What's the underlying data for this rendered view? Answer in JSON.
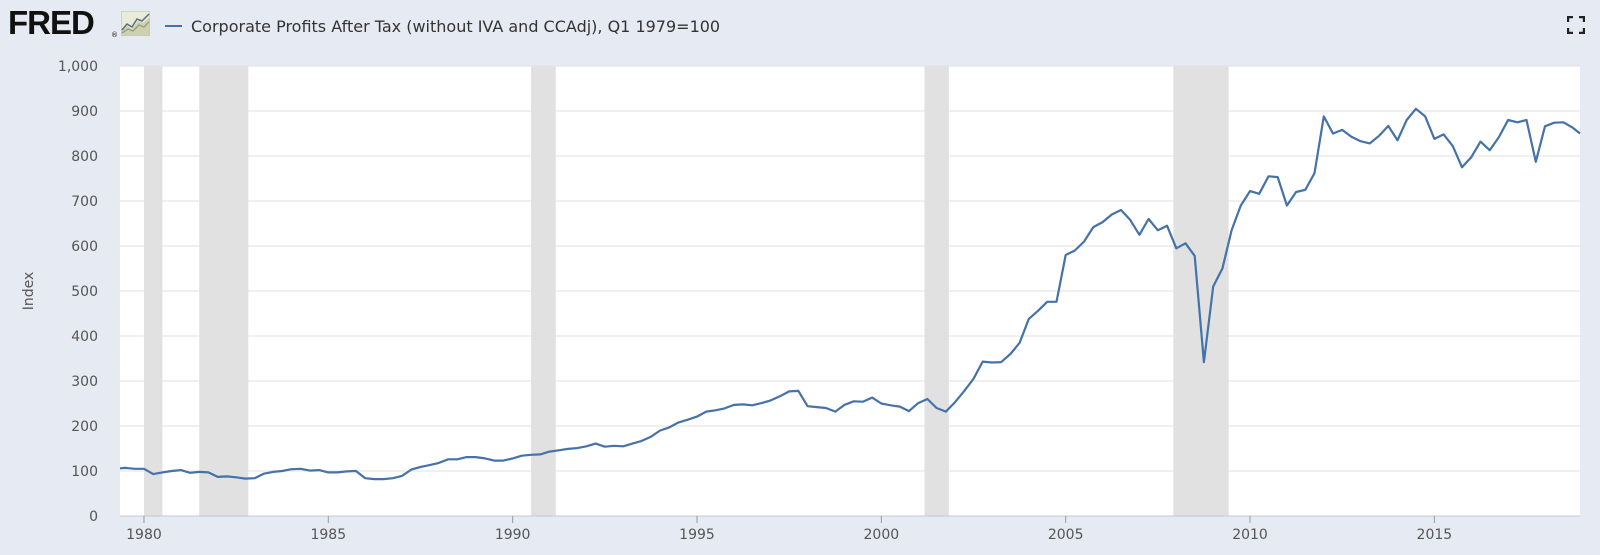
{
  "header": {
    "logo_text": "FRED",
    "logo_reg": "®",
    "title": "Corporate Profits After Tax (without IVA and CCAdj), Q1 1979=100"
  },
  "icons": {
    "logo_graph": "line-graph-icon",
    "fullscreen": "fullscreen-icon"
  },
  "colors": {
    "background": "#e6eaf2",
    "plot_background": "#ffffff",
    "series": "#4572a7",
    "recession": "#e1e1e1",
    "grid": "#e1e1e1"
  },
  "chart_data": {
    "type": "line",
    "title": "Corporate Profits After Tax (without IVA and CCAdj), Q1 1979=100",
    "xlabel": "",
    "ylabel": "Index",
    "xlim": [
      1979.35,
      2018.95
    ],
    "ylim": [
      0,
      1000
    ],
    "y_ticks": [
      0,
      100,
      200,
      300,
      400,
      500,
      600,
      700,
      800,
      900,
      1000
    ],
    "y_tick_labels": [
      "0",
      "100",
      "200",
      "300",
      "400",
      "500",
      "600",
      "700",
      "800",
      "900",
      "1,000"
    ],
    "x_ticks": [
      1980,
      1985,
      1990,
      1995,
      2000,
      2005,
      2010,
      2015
    ],
    "x_tick_labels": [
      "1980",
      "1985",
      "1990",
      "1995",
      "2000",
      "2005",
      "2010",
      "2015"
    ],
    "grid": true,
    "legend": "top-left",
    "recessions": [
      [
        1980.0,
        1980.5
      ],
      [
        1981.5,
        1982.83
      ],
      [
        1990.5,
        1991.17
      ],
      [
        2001.17,
        2001.83
      ],
      [
        2007.92,
        2009.42
      ]
    ],
    "series": [
      {
        "name": "Corporate Profits After Tax (without IVA and CCAdj), Q1 1979=100",
        "x": [
          1979.35,
          1979.5,
          1979.75,
          1980.0,
          1980.25,
          1980.5,
          1980.75,
          1981.0,
          1981.25,
          1981.5,
          1981.75,
          1982.0,
          1982.25,
          1982.5,
          1982.75,
          1983.0,
          1983.25,
          1983.5,
          1983.75,
          1984.0,
          1984.25,
          1984.5,
          1984.75,
          1985.0,
          1985.25,
          1985.5,
          1985.75,
          1986.0,
          1986.25,
          1986.5,
          1986.75,
          1987.0,
          1987.25,
          1987.5,
          1987.75,
          1988.0,
          1988.25,
          1988.5,
          1988.75,
          1989.0,
          1989.25,
          1989.5,
          1989.75,
          1990.0,
          1990.25,
          1990.5,
          1990.75,
          1991.0,
          1991.25,
          1991.5,
          1991.75,
          1992.0,
          1992.25,
          1992.5,
          1992.75,
          1993.0,
          1993.25,
          1993.5,
          1993.75,
          1994.0,
          1994.25,
          1994.5,
          1994.75,
          1995.0,
          1995.25,
          1995.5,
          1995.75,
          1996.0,
          1996.25,
          1996.5,
          1996.75,
          1997.0,
          1997.25,
          1997.5,
          1997.75,
          1998.0,
          1998.25,
          1998.5,
          1998.75,
          1999.0,
          1999.25,
          1999.5,
          1999.75,
          2000.0,
          2000.25,
          2000.5,
          2000.75,
          2001.0,
          2001.25,
          2001.5,
          2001.75,
          2002.0,
          2002.25,
          2002.5,
          2002.75,
          2003.0,
          2003.25,
          2003.5,
          2003.75,
          2004.0,
          2004.25,
          2004.5,
          2004.75,
          2005.0,
          2005.25,
          2005.5,
          2005.75,
          2006.0,
          2006.25,
          2006.5,
          2006.75,
          2007.0,
          2007.25,
          2007.5,
          2007.75,
          2008.0,
          2008.25,
          2008.5,
          2008.75,
          2009.0,
          2009.25,
          2009.5,
          2009.75,
          2010.0,
          2010.25,
          2010.5,
          2010.75,
          2011.0,
          2011.25,
          2011.5,
          2011.75,
          2012.0,
          2012.25,
          2012.5,
          2012.75,
          2013.0,
          2013.25,
          2013.5,
          2013.75,
          2014.0,
          2014.25,
          2014.5,
          2014.75,
          2015.0,
          2015.25,
          2015.5,
          2015.75,
          2016.0,
          2016.25,
          2016.5,
          2016.75,
          2017.0,
          2017.25,
          2017.5,
          2017.75,
          2018.0,
          2018.25,
          2018.5,
          2018.75,
          2018.95
        ],
        "values": [
          106,
          107,
          105,
          105,
          93,
          97,
          100,
          102,
          96,
          98,
          97,
          87,
          88,
          86,
          83,
          84,
          94,
          98,
          100,
          104,
          105,
          101,
          102,
          97,
          97,
          99,
          100,
          84,
          82,
          82,
          84,
          89,
          103,
          109,
          113,
          118,
          126,
          126,
          131,
          131,
          128,
          123,
          123,
          128,
          134,
          136,
          137,
          143,
          146,
          149,
          151,
          155,
          161,
          154,
          156,
          155,
          161,
          167,
          176,
          190,
          197,
          208,
          214,
          221,
          232,
          235,
          239,
          247,
          248,
          246,
          251,
          257,
          266,
          277,
          278,
          244,
          242,
          240,
          232,
          247,
          255,
          254,
          263,
          250,
          246,
          243,
          233,
          251,
          260,
          240,
          232,
          253,
          278,
          305,
          343,
          341,
          342,
          360,
          385,
          438,
          456,
          476,
          476,
          580,
          590,
          610,
          642,
          653,
          670,
          680,
          658,
          625,
          660,
          635,
          645,
          595,
          606,
          578,
          342,
          510,
          550,
          635,
          690,
          722,
          716,
          755,
          753,
          690,
          720,
          725,
          762,
          888,
          850,
          858,
          843,
          833,
          828,
          845,
          867,
          835,
          880,
          905,
          888,
          838,
          848,
          822,
          775,
          797,
          832,
          813,
          842,
          880,
          875,
          880,
          787,
          866,
          874,
          875,
          863,
          850
        ]
      }
    ]
  }
}
